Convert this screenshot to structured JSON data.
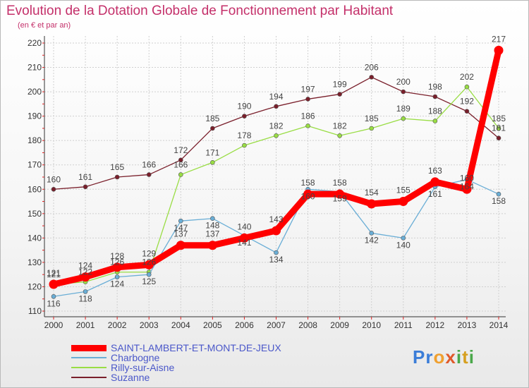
{
  "chart_data": {
    "type": "line",
    "title": "Evolution de la Dotation Globale de Fonctionnement par Habitant",
    "subtitle": "(en € et par an)",
    "xlabel": "",
    "ylabel": "",
    "categories": [
      "2000",
      "2001",
      "2002",
      "2003",
      "2004",
      "2005",
      "2006",
      "2007",
      "2008",
      "2009",
      "2010",
      "2011",
      "2012",
      "2013",
      "2014"
    ],
    "ylim": [
      110,
      220
    ],
    "yticks": [
      110,
      120,
      130,
      140,
      150,
      160,
      170,
      180,
      190,
      200,
      210,
      220
    ],
    "grid": true,
    "legend_position": "bottom-left",
    "series": [
      {
        "name": "Suzanne",
        "color": "#7a1f2b",
        "values": [
          160,
          161,
          165,
          166,
          172,
          185,
          190,
          194,
          197,
          199,
          206,
          200,
          198,
          192,
          181
        ]
      },
      {
        "name": "Rilly-sur-Aisne",
        "color": "#99dd44",
        "values": [
          121,
          122,
          126,
          126,
          166,
          171,
          178,
          182,
          186,
          182,
          185,
          189,
          188,
          202,
          185
        ]
      },
      {
        "name": "Charbogne",
        "color": "#6aaed6",
        "values": [
          116,
          118,
          124,
          125,
          147,
          148,
          141,
          134,
          160,
          159,
          142,
          140,
          161,
          164,
          158
        ]
      },
      {
        "name": "SAINT-LAMBERT-ET-MONT-DE-JEUX",
        "color": "#ff0000",
        "values": [
          121,
          124,
          128,
          129,
          137,
          137,
          140,
          143,
          158,
          158,
          154,
          155,
          163,
          160,
          217
        ]
      }
    ]
  },
  "legend": {
    "items": [
      {
        "label": "SAINT-LAMBERT-ET-MONT-DE-JEUX",
        "color": "#ff0000"
      },
      {
        "label": "Charbogne",
        "color": "#6aaed6"
      },
      {
        "label": "Rilly-sur-Aisne",
        "color": "#99dd44"
      },
      {
        "label": "Suzanne",
        "color": "#7a1f2b"
      }
    ]
  },
  "logo": {
    "letters": [
      {
        "ch": "P",
        "color": "#3b7dd8"
      },
      {
        "ch": "r",
        "color": "#3b7dd8"
      },
      {
        "ch": "o",
        "color": "#f0a030"
      },
      {
        "ch": "x",
        "color": "#e05a2a"
      },
      {
        "ch": "i",
        "color": "#4aa84a"
      },
      {
        "ch": "t",
        "color": "#d6a020"
      },
      {
        "ch": "i",
        "color": "#4aa84a"
      }
    ]
  }
}
